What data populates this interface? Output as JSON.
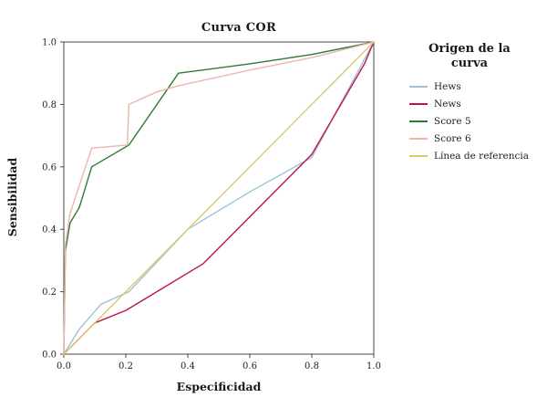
{
  "legend": {
    "title": "Origen de la curva"
  },
  "chart_data": {
    "type": "line",
    "title": "Curva COR",
    "xlabel": "Especificidad",
    "ylabel": "Sensibilidad",
    "xlim": [
      0,
      1
    ],
    "ylim": [
      0,
      1
    ],
    "xticks": [
      0,
      0.2,
      0.4,
      0.6,
      0.8,
      1.0
    ],
    "yticks": [
      0,
      0.2,
      0.4,
      0.6,
      0.8,
      1.0
    ],
    "tick_labels": [
      "0.0",
      "0.2",
      "0.4",
      "0.6",
      "0.8",
      "1.0"
    ],
    "grid": false,
    "legend_position": "right",
    "series": [
      {
        "name": "Hews",
        "color": "#9dc3da",
        "points": [
          [
            0,
            0
          ],
          [
            0.05,
            0.08
          ],
          [
            0.12,
            0.16
          ],
          [
            0.21,
            0.2
          ],
          [
            0.4,
            0.4
          ],
          [
            0.6,
            0.52
          ],
          [
            0.8,
            0.63
          ],
          [
            1,
            1
          ]
        ]
      },
      {
        "name": "News",
        "color": "#c0134f",
        "points": [
          [
            0,
            0
          ],
          [
            0.1,
            0.1
          ],
          [
            0.2,
            0.14
          ],
          [
            0.3,
            0.2
          ],
          [
            0.45,
            0.29
          ],
          [
            0.6,
            0.44
          ],
          [
            0.8,
            0.64
          ],
          [
            0.97,
            0.93
          ],
          [
            1,
            1
          ]
        ]
      },
      {
        "name": "Score 5",
        "color": "#2e7a33",
        "points": [
          [
            0,
            0
          ],
          [
            0.005,
            0.33
          ],
          [
            0.02,
            0.42
          ],
          [
            0.05,
            0.47
          ],
          [
            0.09,
            0.6
          ],
          [
            0.21,
            0.67
          ],
          [
            0.37,
            0.9
          ],
          [
            0.6,
            0.93
          ],
          [
            0.8,
            0.96
          ],
          [
            1,
            1
          ]
        ]
      },
      {
        "name": "Score 6",
        "color": "#f0b3ad",
        "points": [
          [
            0,
            0
          ],
          [
            0.005,
            0.35
          ],
          [
            0.02,
            0.45
          ],
          [
            0.09,
            0.66
          ],
          [
            0.205,
            0.67
          ],
          [
            0.21,
            0.8
          ],
          [
            0.3,
            0.84
          ],
          [
            0.37,
            0.86
          ],
          [
            0.6,
            0.91
          ],
          [
            0.8,
            0.95
          ],
          [
            1,
            1
          ]
        ]
      },
      {
        "name": "Línea de referencia",
        "color": "#ddc96a",
        "points": [
          [
            0,
            0
          ],
          [
            1,
            1
          ]
        ]
      }
    ]
  }
}
